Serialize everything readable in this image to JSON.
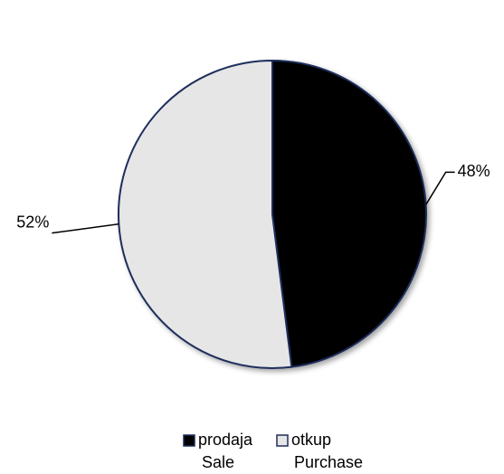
{
  "chart_data": {
    "type": "pie",
    "categories": [
      [
        "prodaja",
        "Sale"
      ],
      [
        "otkup",
        "Purchase"
      ]
    ],
    "values": [
      48,
      52
    ],
    "value_labels": [
      "48%",
      "52%"
    ],
    "colors": [
      "#000000",
      "#e6e6e6"
    ],
    "legend": "bottom"
  }
}
